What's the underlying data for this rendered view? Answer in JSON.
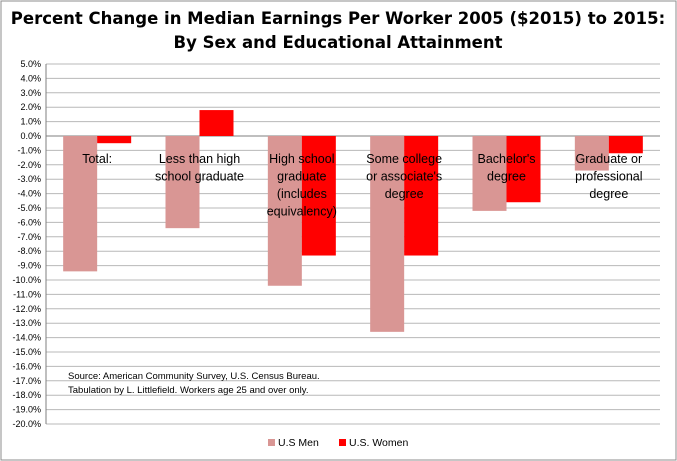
{
  "chart_data": {
    "type": "bar",
    "title_lines": [
      "Percent Change in Median Earnings Per Worker 2005 ($2015) to 2015:",
      "By Sex and Educational Attainment"
    ],
    "categories": [
      [
        "Total:"
      ],
      [
        "Less than high",
        "school graduate"
      ],
      [
        "High school",
        "graduate",
        "(includes",
        "equivalency)"
      ],
      [
        "Some college",
        "or associate's",
        "degree"
      ],
      [
        "Bachelor's",
        "degree"
      ],
      [
        "Graduate or",
        "professional",
        "degree"
      ]
    ],
    "series": [
      {
        "name": "U.S Men",
        "color": "#d99694",
        "values": [
          -9.4,
          -6.4,
          -10.4,
          -13.6,
          -5.2,
          -2.4
        ]
      },
      {
        "name": "U.S. Women",
        "color": "#ff0000",
        "values": [
          -0.5,
          1.8,
          -8.3,
          -8.3,
          -4.6,
          -1.2
        ]
      }
    ],
    "ylim": [
      -20,
      5
    ],
    "ytick_step": 1,
    "ytick_format": "percent_one_decimal",
    "grid": true,
    "legend_position": "bottom",
    "source_note": [
      "Source:  American Community Survey, U.S. Census Bureau.",
      "Tabulation by L. Littlefield.  Workers age 25 and over only."
    ]
  }
}
